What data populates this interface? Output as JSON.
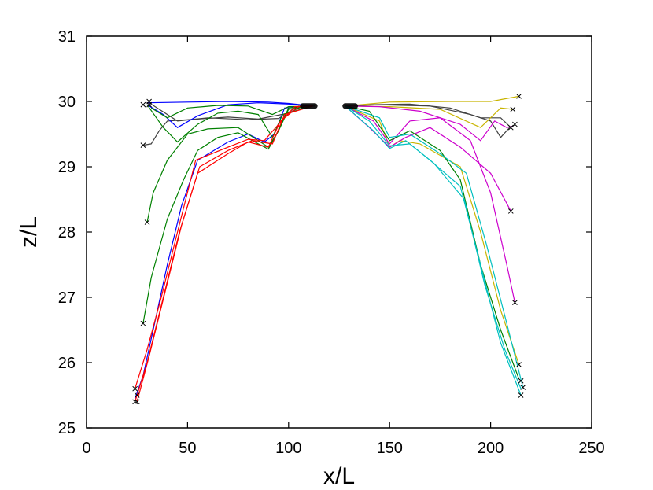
{
  "chart_data": {
    "type": "line",
    "title": "",
    "xlabel": "x/L",
    "ylabel": "z/L",
    "xlim": [
      0,
      250
    ],
    "ylim": [
      25,
      31
    ],
    "xticks": [
      0,
      50,
      100,
      150,
      200,
      250
    ],
    "yticks": [
      25,
      26,
      27,
      28,
      29,
      30,
      31
    ],
    "grid": false,
    "legend": "none",
    "series": [
      {
        "name": "black-left-1",
        "color": "#404040",
        "points": [
          [
            31,
            29.98
          ],
          [
            45,
            29.7
          ],
          [
            60,
            29.75
          ],
          [
            80,
            29.72
          ],
          [
            95,
            29.74
          ],
          [
            105,
            29.93
          ],
          [
            112,
            29.93
          ]
        ]
      },
      {
        "name": "black-left-2",
        "color": "#404040",
        "points": [
          [
            28,
            29.33
          ],
          [
            32,
            29.35
          ],
          [
            36,
            29.55
          ],
          [
            40,
            29.7
          ],
          [
            50,
            29.72
          ],
          [
            70,
            29.76
          ],
          [
            85,
            29.73
          ],
          [
            100,
            29.82
          ],
          [
            107,
            29.93
          ],
          [
            113,
            29.93
          ]
        ]
      },
      {
        "name": "blue-left-1",
        "color": "#0000ff",
        "points": [
          [
            30,
            29.98
          ],
          [
            50,
            29.99
          ],
          [
            70,
            30.0
          ],
          [
            90,
            29.99
          ],
          [
            100,
            29.97
          ],
          [
            112,
            29.93
          ]
        ]
      },
      {
        "name": "blue-left-2",
        "color": "#0000ff",
        "points": [
          [
            30,
            29.95
          ],
          [
            38,
            29.8
          ],
          [
            45,
            29.6
          ],
          [
            55,
            29.78
          ],
          [
            70,
            29.95
          ],
          [
            85,
            29.98
          ],
          [
            100,
            29.96
          ],
          [
            112,
            29.93
          ]
        ]
      },
      {
        "name": "blue-left-3",
        "color": "#0000ff",
        "points": [
          [
            24,
            25.45
          ],
          [
            28,
            25.8
          ],
          [
            33,
            26.5
          ],
          [
            40,
            27.5
          ],
          [
            47,
            28.4
          ],
          [
            55,
            29.1
          ],
          [
            70,
            29.38
          ],
          [
            80,
            29.5
          ],
          [
            88,
            29.38
          ],
          [
            93,
            29.5
          ],
          [
            98,
            29.9
          ],
          [
            112,
            29.93
          ]
        ]
      },
      {
        "name": "green-left-1",
        "color": "#008000",
        "points": [
          [
            30,
            28.15
          ],
          [
            33,
            28.6
          ],
          [
            40,
            29.1
          ],
          [
            50,
            29.5
          ],
          [
            60,
            29.58
          ],
          [
            75,
            29.6
          ],
          [
            85,
            29.4
          ],
          [
            90,
            29.3
          ],
          [
            95,
            29.55
          ],
          [
            100,
            29.88
          ],
          [
            112,
            29.93
          ]
        ]
      },
      {
        "name": "green-left-2",
        "color": "#008000",
        "points": [
          [
            28,
            26.6
          ],
          [
            32,
            27.3
          ],
          [
            40,
            28.2
          ],
          [
            48,
            28.8
          ],
          [
            55,
            29.25
          ],
          [
            65,
            29.45
          ],
          [
            75,
            29.52
          ],
          [
            85,
            29.35
          ],
          [
            90,
            29.27
          ],
          [
            95,
            29.55
          ],
          [
            100,
            29.9
          ],
          [
            112,
            29.93
          ]
        ]
      },
      {
        "name": "green-left-3",
        "color": "#008000",
        "points": [
          [
            30,
            29.95
          ],
          [
            38,
            29.6
          ],
          [
            45,
            29.38
          ],
          [
            55,
            29.65
          ],
          [
            65,
            29.82
          ],
          [
            75,
            29.85
          ],
          [
            85,
            29.8
          ],
          [
            92,
            29.45
          ],
          [
            97,
            29.8
          ],
          [
            112,
            29.93
          ]
        ]
      },
      {
        "name": "green-left-4",
        "color": "#008000",
        "points": [
          [
            32,
            29.9
          ],
          [
            40,
            29.75
          ],
          [
            50,
            29.9
          ],
          [
            65,
            29.94
          ],
          [
            80,
            29.93
          ],
          [
            92,
            29.8
          ],
          [
            100,
            29.92
          ],
          [
            112,
            29.93
          ]
        ]
      },
      {
        "name": "red-left-1",
        "color": "#ff0000",
        "points": [
          [
            24,
            25.4
          ],
          [
            30,
            26.0
          ],
          [
            38,
            27.0
          ],
          [
            46,
            28.0
          ],
          [
            55,
            28.9
          ],
          [
            70,
            29.2
          ],
          [
            80,
            29.38
          ],
          [
            90,
            29.3
          ],
          [
            96,
            29.7
          ],
          [
            105,
            29.92
          ],
          [
            112,
            29.93
          ]
        ]
      },
      {
        "name": "red-left-2",
        "color": "#ff0000",
        "points": [
          [
            25,
            25.4
          ],
          [
            31,
            26.1
          ],
          [
            39,
            27.1
          ],
          [
            47,
            28.1
          ],
          [
            56,
            29.0
          ],
          [
            70,
            29.25
          ],
          [
            82,
            29.4
          ],
          [
            92,
            29.35
          ],
          [
            98,
            29.8
          ],
          [
            112,
            29.93
          ]
        ]
      },
      {
        "name": "red-left-3",
        "color": "#ff0000",
        "points": [
          [
            24,
            25.6
          ],
          [
            30,
            26.2
          ],
          [
            37,
            27.0
          ],
          [
            45,
            28.0
          ],
          [
            54,
            29.1
          ],
          [
            70,
            29.3
          ],
          [
            80,
            29.42
          ],
          [
            88,
            29.4
          ],
          [
            95,
            29.65
          ],
          [
            103,
            29.92
          ],
          [
            112,
            29.93
          ]
        ]
      },
      {
        "name": "black-right-1",
        "color": "#404040",
        "points": [
          [
            128,
            29.93
          ],
          [
            140,
            29.95
          ],
          [
            160,
            29.96
          ],
          [
            180,
            29.9
          ],
          [
            195,
            29.75
          ],
          [
            205,
            29.75
          ],
          [
            210,
            29.6
          ],
          [
            212,
            29.65
          ]
        ]
      },
      {
        "name": "black-right-2",
        "color": "#404040",
        "points": [
          [
            128,
            29.93
          ],
          [
            145,
            29.95
          ],
          [
            170,
            29.93
          ],
          [
            190,
            29.8
          ],
          [
            200,
            29.7
          ],
          [
            205,
            29.45
          ],
          [
            210,
            29.62
          ]
        ]
      },
      {
        "name": "yellow-right-1",
        "color": "#c8b400",
        "points": [
          [
            128,
            29.93
          ],
          [
            150,
            29.99
          ],
          [
            180,
            30.0
          ],
          [
            200,
            30.0
          ],
          [
            214,
            30.08
          ]
        ]
      },
      {
        "name": "yellow-right-2",
        "color": "#c8b400",
        "points": [
          [
            128,
            29.93
          ],
          [
            150,
            29.92
          ],
          [
            175,
            29.88
          ],
          [
            195,
            29.6
          ],
          [
            205,
            29.9
          ],
          [
            211,
            29.88
          ]
        ]
      },
      {
        "name": "yellow-right-3",
        "color": "#c8b400",
        "points": [
          [
            128,
            29.93
          ],
          [
            145,
            29.7
          ],
          [
            150,
            29.3
          ],
          [
            155,
            29.4
          ],
          [
            165,
            29.35
          ],
          [
            185,
            29.0
          ],
          [
            195,
            28.0
          ],
          [
            205,
            26.8
          ],
          [
            214,
            25.97
          ]
        ]
      },
      {
        "name": "magenta-right-1",
        "color": "#cc00cc",
        "points": [
          [
            128,
            29.93
          ],
          [
            145,
            29.92
          ],
          [
            165,
            29.85
          ],
          [
            185,
            29.65
          ],
          [
            195,
            29.4
          ],
          [
            202,
            29.7
          ],
          [
            208,
            29.6
          ],
          [
            211,
            29.62
          ]
        ]
      },
      {
        "name": "magenta-right-2",
        "color": "#cc00cc",
        "points": [
          [
            128,
            29.93
          ],
          [
            140,
            29.6
          ],
          [
            150,
            29.3
          ],
          [
            158,
            29.45
          ],
          [
            170,
            29.6
          ],
          [
            185,
            29.3
          ],
          [
            200,
            28.9
          ],
          [
            210,
            28.32
          ]
        ]
      },
      {
        "name": "magenta-right-3",
        "color": "#cc00cc",
        "points": [
          [
            128,
            29.93
          ],
          [
            142,
            29.7
          ],
          [
            150,
            29.35
          ],
          [
            160,
            29.7
          ],
          [
            175,
            29.75
          ],
          [
            190,
            29.4
          ],
          [
            200,
            28.6
          ],
          [
            208,
            27.5
          ],
          [
            212,
            26.92
          ]
        ]
      },
      {
        "name": "green-right-1",
        "color": "#008000",
        "points": [
          [
            128,
            29.93
          ],
          [
            140,
            29.85
          ],
          [
            150,
            29.4
          ],
          [
            160,
            29.55
          ],
          [
            175,
            29.25
          ],
          [
            185,
            28.8
          ],
          [
            195,
            27.5
          ],
          [
            205,
            26.5
          ],
          [
            214,
            25.75
          ]
        ]
      },
      {
        "name": "cyan-right-1",
        "color": "#00c0c0",
        "points": [
          [
            128,
            29.93
          ],
          [
            140,
            29.7
          ],
          [
            150,
            29.32
          ],
          [
            160,
            29.35
          ],
          [
            170,
            29.1
          ],
          [
            185,
            28.7
          ],
          [
            195,
            27.5
          ],
          [
            205,
            26.3
          ],
          [
            215,
            25.5
          ]
        ]
      },
      {
        "name": "cyan-right-2",
        "color": "#00c0c0",
        "points": [
          [
            128,
            29.93
          ],
          [
            142,
            29.55
          ],
          [
            150,
            29.28
          ],
          [
            158,
            29.4
          ],
          [
            172,
            29.05
          ],
          [
            187,
            28.5
          ],
          [
            197,
            27.2
          ],
          [
            207,
            26.2
          ],
          [
            215,
            25.6
          ]
        ]
      },
      {
        "name": "cyan-right-3",
        "color": "#00c0c0",
        "points": [
          [
            128,
            29.93
          ],
          [
            145,
            29.75
          ],
          [
            150,
            29.45
          ],
          [
            160,
            29.5
          ],
          [
            175,
            29.2
          ],
          [
            188,
            28.9
          ],
          [
            198,
            27.8
          ],
          [
            208,
            26.6
          ],
          [
            216,
            25.62
          ]
        ]
      }
    ],
    "markers": [
      [
        28,
        29.95
      ],
      [
        31,
        30.0
      ],
      [
        31,
        29.95
      ],
      [
        28,
        29.33
      ],
      [
        30,
        28.15
      ],
      [
        28,
        26.6
      ],
      [
        24,
        25.6
      ],
      [
        25,
        25.5
      ],
      [
        24,
        25.4
      ],
      [
        25,
        25.4
      ],
      [
        214,
        30.08
      ],
      [
        211,
        29.88
      ],
      [
        212,
        29.65
      ],
      [
        210,
        29.6
      ],
      [
        210,
        28.32
      ],
      [
        212,
        26.92
      ],
      [
        214,
        25.97
      ],
      [
        215,
        25.72
      ],
      [
        216,
        25.62
      ],
      [
        215,
        25.5
      ]
    ],
    "nozzle_segments": [
      {
        "color": "#000000",
        "x": [
          107,
          113
        ],
        "y": 29.93
      },
      {
        "color": "#000000",
        "x": [
          128,
          133
        ],
        "y": 29.93
      }
    ]
  }
}
